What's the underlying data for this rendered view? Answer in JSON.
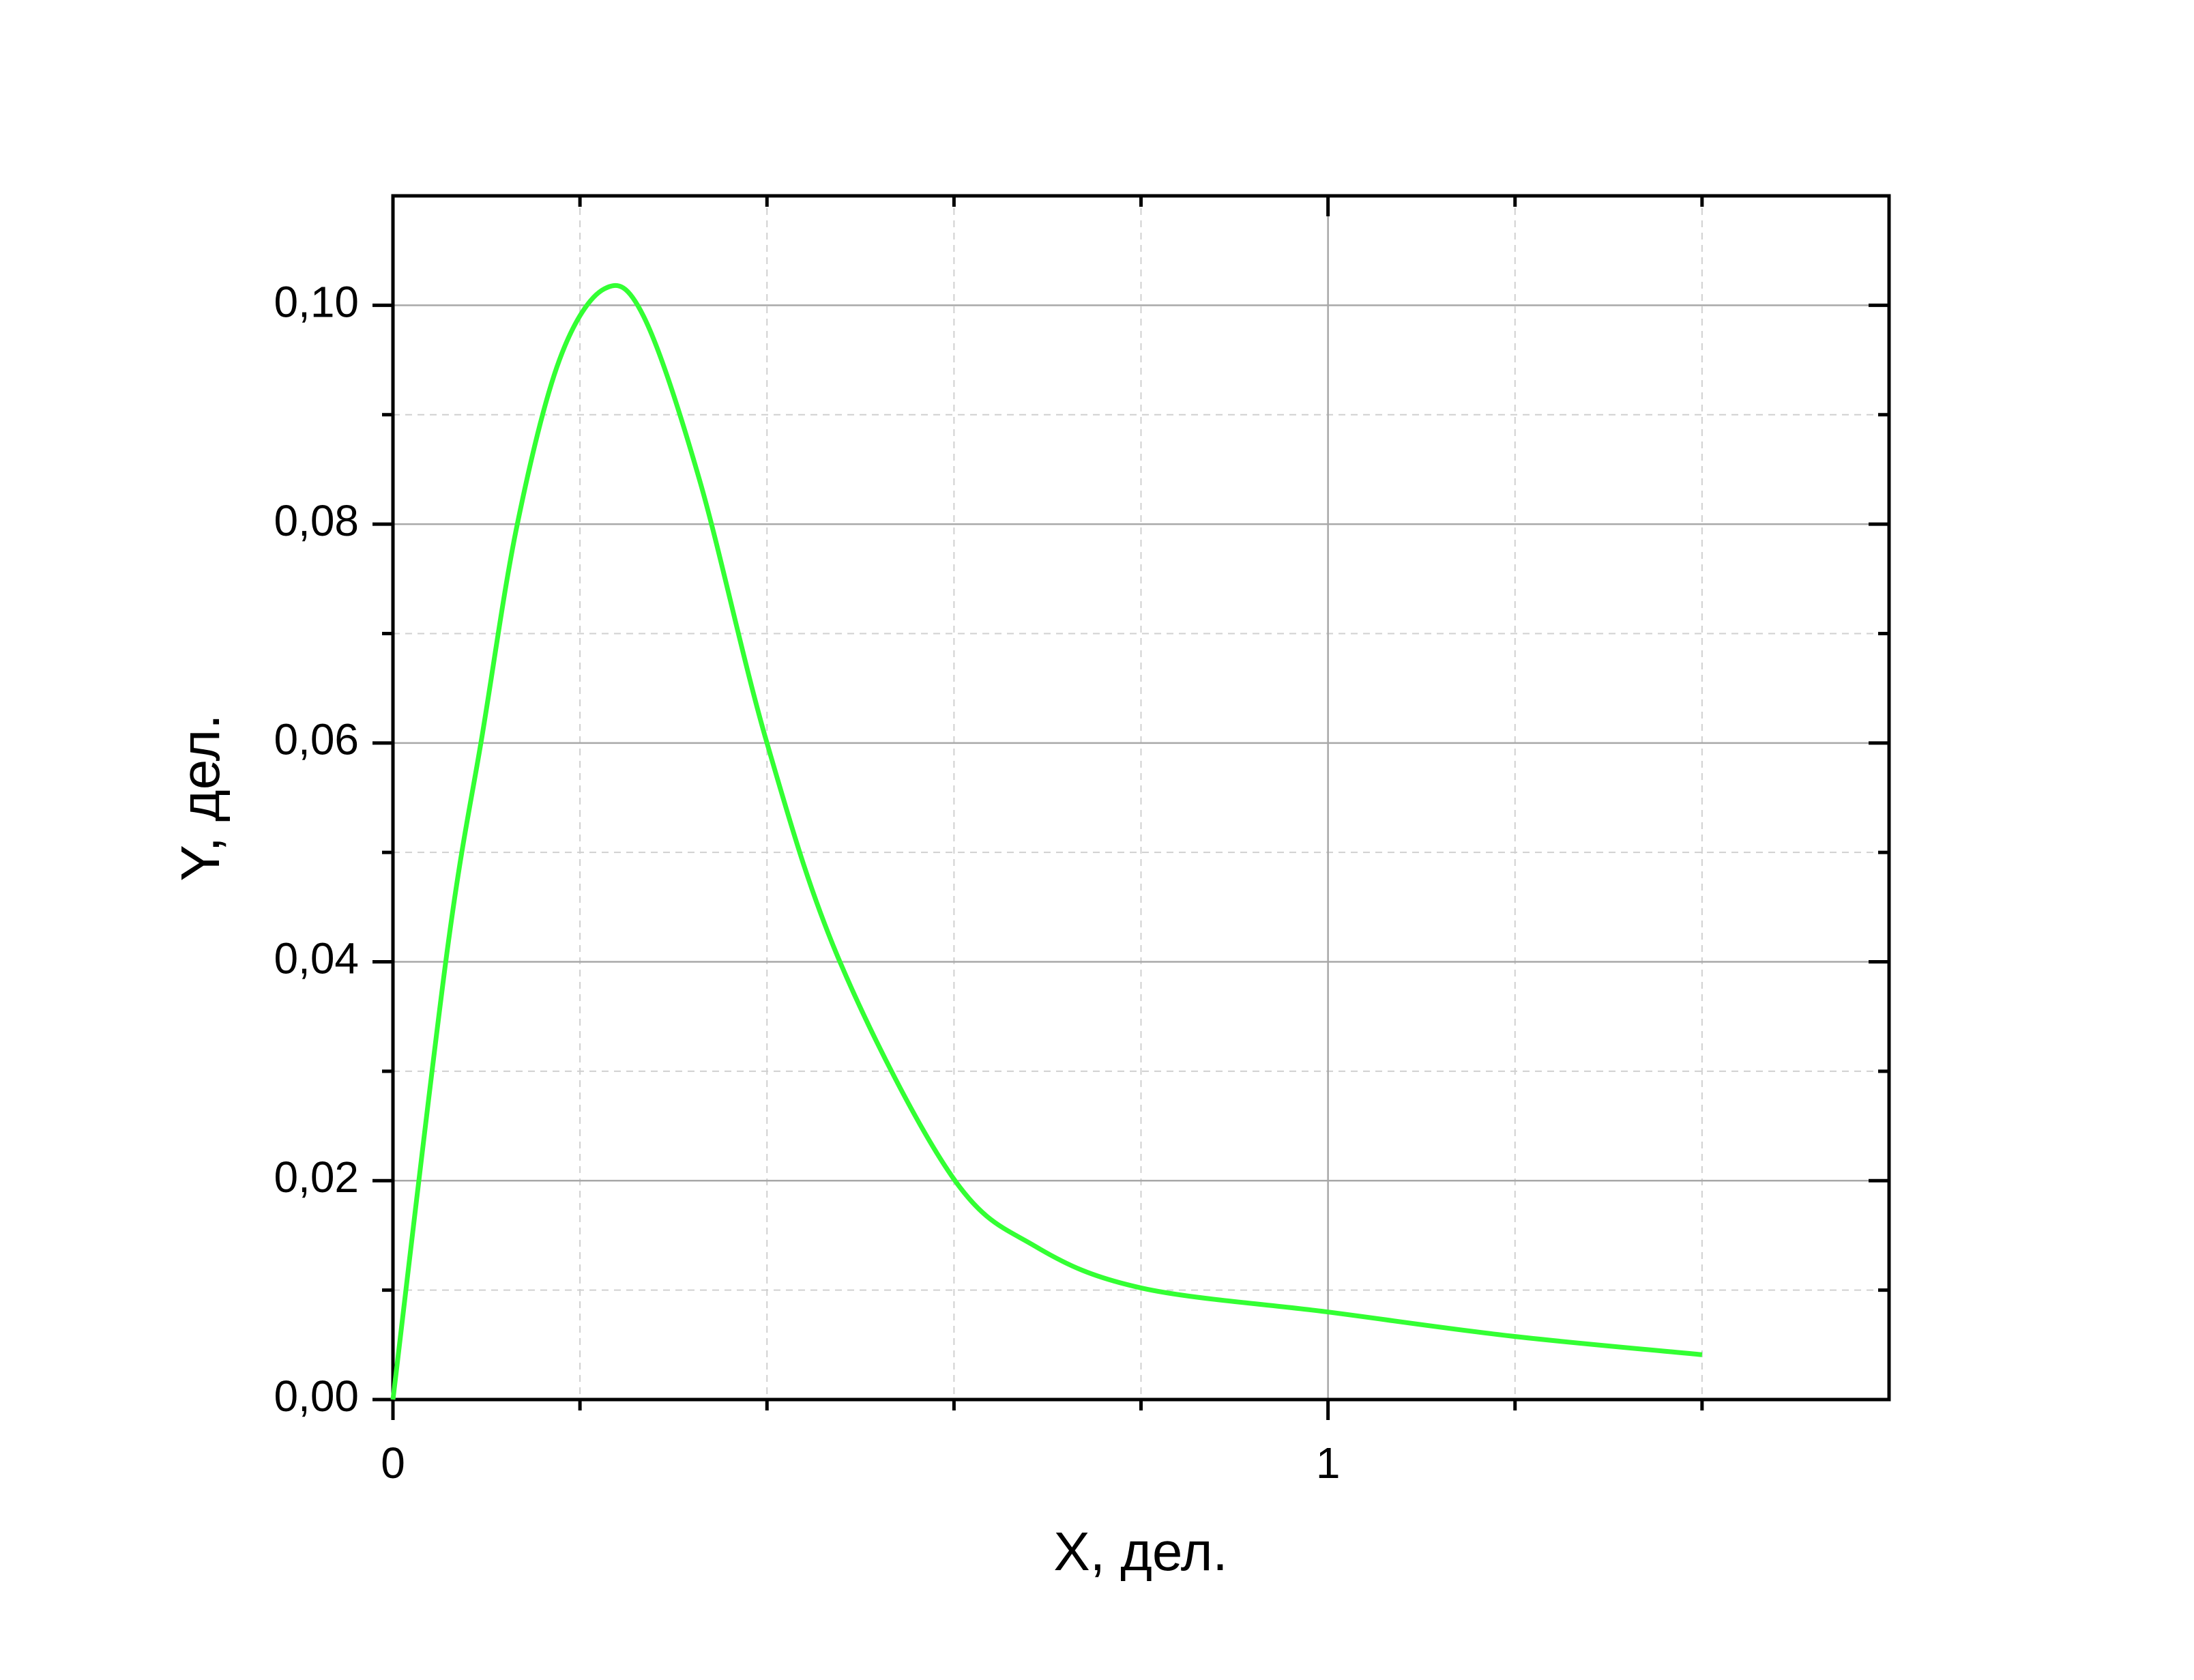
{
  "chart_data": {
    "type": "line",
    "x_label": "X, дел.",
    "y_label": "Y, дел.",
    "x": [
      0,
      0.058,
      0.096,
      0.133,
      0.178,
      0.226,
      0.268,
      0.328,
      0.4,
      0.478,
      0.597,
      0.687,
      0.8,
      1.0,
      1.196,
      1.4
    ],
    "series": [
      {
        "color": "#33ff33",
        "values": [
          0,
          0.041,
          0.061,
          0.08,
          0.095,
          0.1015,
          0.099,
          0.084,
          0.06,
          0.04,
          0.0205,
          0.014,
          0.0102,
          0.008,
          0.0058,
          0.0041
        ]
      }
    ],
    "xlim": [
      0,
      1.6
    ],
    "xticks": [
      0,
      1
    ],
    "xminorticks": [
      0.2,
      0.4,
      0.6,
      0.8,
      1.2,
      1.4
    ],
    "ylim": [
      0,
      0.11
    ],
    "yticks": [
      {
        "value": 0,
        "label": "0,00"
      },
      {
        "value": 0.02,
        "label": "0,02"
      },
      {
        "value": 0.04,
        "label": "0,04"
      },
      {
        "value": 0.06,
        "label": "0,06"
      },
      {
        "value": 0.08,
        "label": "0,08"
      },
      {
        "value": 0.1,
        "label": "0,10"
      }
    ],
    "yminorticks": [
      0.01,
      0.03,
      0.05,
      0.07,
      0.09
    ],
    "grid": true
  }
}
